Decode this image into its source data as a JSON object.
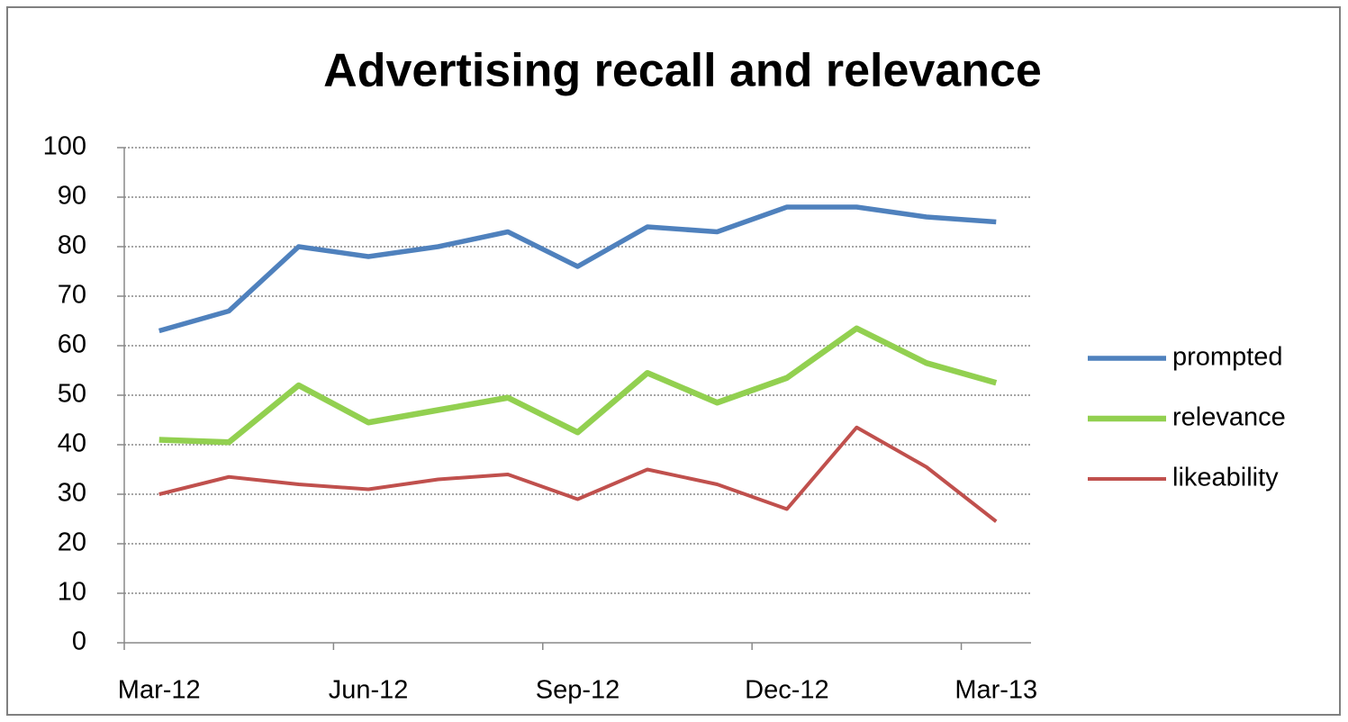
{
  "chart_data": {
    "type": "line",
    "title": "Advertising recall and relevance",
    "categories": [
      "Mar-12",
      null,
      null,
      "Jun-12",
      null,
      null,
      "Sep-12",
      null,
      null,
      "Dec-12",
      null,
      null,
      "Mar-13"
    ],
    "series": [
      {
        "name": "prompted",
        "color": "#4f81bd",
        "values": [
          63,
          67,
          80,
          78,
          80,
          83,
          76,
          84,
          83,
          88,
          88,
          86,
          85
        ]
      },
      {
        "name": "relevance",
        "color": "#92d050",
        "values": [
          41,
          40.5,
          52,
          44.5,
          47,
          49.5,
          42.5,
          54.5,
          48.5,
          53.5,
          63.5,
          56.5,
          52.5
        ]
      },
      {
        "name": "likeability",
        "color": "#c0504d",
        "values": [
          30,
          33.5,
          32,
          31,
          33,
          34,
          29,
          35,
          32,
          27,
          43.5,
          35.5,
          24.5
        ]
      }
    ],
    "ylim": [
      0,
      100
    ],
    "yticks": [
      0,
      10,
      20,
      30,
      40,
      50,
      60,
      70,
      80,
      90,
      100
    ],
    "grid": true,
    "legend": "right"
  }
}
